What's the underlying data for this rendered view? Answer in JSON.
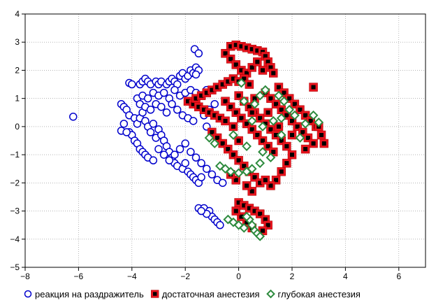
{
  "chart_data": {
    "type": "scatter",
    "title": "",
    "xlabel": "",
    "ylabel": "",
    "xlim": [
      -8,
      7
    ],
    "ylim": [
      -5,
      4
    ],
    "xticks": [
      -8,
      -6,
      -4,
      -2,
      0,
      2,
      4,
      6
    ],
    "yticks": [
      -5,
      -4,
      -3,
      -2,
      -1,
      0,
      1,
      2,
      3,
      4
    ],
    "grid": true,
    "legend_position": "bottom",
    "series": [
      {
        "name": "реакция на раздражитель",
        "marker": "circle",
        "color": "#0000cc",
        "points": [
          [
            -6.2,
            0.35
          ],
          [
            -4.4,
            0.8
          ],
          [
            -4.3,
            0.7
          ],
          [
            -4.2,
            0.6
          ],
          [
            -4.1,
            0.4
          ],
          [
            -4.3,
            0.1
          ],
          [
            -4.1,
            -0.2
          ],
          [
            -4.0,
            -0.3
          ],
          [
            -3.9,
            -0.5
          ],
          [
            -3.8,
            -0.6
          ],
          [
            -3.7,
            -0.8
          ],
          [
            -4.4,
            -0.15
          ],
          [
            -4.2,
            -0.2
          ],
          [
            -3.6,
            -0.9
          ],
          [
            -3.5,
            -1.0
          ],
          [
            -3.4,
            -1.1
          ],
          [
            -3.2,
            -1.2
          ],
          [
            -4.1,
            1.55
          ],
          [
            -4.0,
            1.5
          ],
          [
            -3.7,
            1.5
          ],
          [
            -3.6,
            1.6
          ],
          [
            -3.5,
            1.7
          ],
          [
            -3.4,
            1.6
          ],
          [
            -3.3,
            1.5
          ],
          [
            -3.1,
            1.6
          ],
          [
            -3.0,
            1.5
          ],
          [
            -2.9,
            1.6
          ],
          [
            -2.7,
            1.5
          ],
          [
            -2.6,
            1.6
          ],
          [
            -2.5,
            1.7
          ],
          [
            -2.4,
            1.6
          ],
          [
            -2.3,
            1.5
          ],
          [
            -2.2,
            1.8
          ],
          [
            -2.1,
            1.9
          ],
          [
            -2.0,
            1.7
          ],
          [
            -1.9,
            1.8
          ],
          [
            -1.8,
            2.0
          ],
          [
            -1.7,
            1.9
          ],
          [
            -1.6,
            2.1
          ],
          [
            -1.5,
            2.0
          ],
          [
            -1.6,
            1.85
          ],
          [
            -1.65,
            2.75
          ],
          [
            -1.5,
            2.6
          ],
          [
            -3.9,
            0.3
          ],
          [
            -3.8,
            0.1
          ],
          [
            -3.7,
            0.3
          ],
          [
            -3.6,
            0.5
          ],
          [
            -3.5,
            0.2
          ],
          [
            -3.4,
            0.0
          ],
          [
            -3.3,
            -0.2
          ],
          [
            -3.2,
            0.1
          ],
          [
            -3.1,
            -0.4
          ],
          [
            -3.0,
            -0.1
          ],
          [
            -3.8,
            1.0
          ],
          [
            -3.6,
            1.1
          ],
          [
            -3.4,
            1.0
          ],
          [
            -3.2,
            1.2
          ],
          [
            -3.0,
            1.1
          ],
          [
            -2.8,
            1.2
          ],
          [
            -2.6,
            1.0
          ],
          [
            -2.4,
            1.3
          ],
          [
            -2.2,
            1.1
          ],
          [
            -2.0,
            1.2
          ],
          [
            -1.8,
            1.3
          ],
          [
            -1.6,
            1.2
          ],
          [
            -1.4,
            1.1
          ],
          [
            -1.2,
            1.3
          ],
          [
            -3.7,
            0.8
          ],
          [
            -3.5,
            0.7
          ],
          [
            -3.3,
            0.6
          ],
          [
            -3.1,
            0.8
          ],
          [
            -2.9,
            0.7
          ],
          [
            -2.7,
            0.5
          ],
          [
            -2.5,
            0.8
          ],
          [
            -2.3,
            0.6
          ],
          [
            -2.1,
            0.4
          ],
          [
            -1.9,
            0.3
          ],
          [
            -1.7,
            0.2
          ],
          [
            -2.9,
            -0.3
          ],
          [
            -2.8,
            -0.5
          ],
          [
            -2.7,
            -0.7
          ],
          [
            -2.6,
            -0.9
          ],
          [
            -2.5,
            -1.1
          ],
          [
            -2.4,
            -1.3
          ],
          [
            -2.3,
            -1.4
          ],
          [
            -2.1,
            -1.5
          ],
          [
            -2.0,
            -1.3
          ],
          [
            -1.9,
            -1.6
          ],
          [
            -1.8,
            -1.7
          ],
          [
            -1.7,
            -1.8
          ],
          [
            -1.6,
            -1.9
          ],
          [
            -1.5,
            -2.0
          ],
          [
            -1.4,
            -1.8
          ],
          [
            -3.0,
            -0.8
          ],
          [
            -2.8,
            -1.0
          ],
          [
            -2.6,
            -1.2
          ],
          [
            -2.4,
            -1.0
          ],
          [
            -2.2,
            -0.8
          ],
          [
            -2.0,
            -0.6
          ],
          [
            -1.8,
            -0.9
          ],
          [
            -1.6,
            -1.1
          ],
          [
            -1.4,
            -1.3
          ],
          [
            -1.2,
            -1.5
          ],
          [
            -1.0,
            -1.7
          ],
          [
            -0.8,
            -1.9
          ],
          [
            -0.6,
            -2.0
          ],
          [
            -1.2,
            0.0
          ],
          [
            -1.0,
            -0.2
          ],
          [
            -0.8,
            -0.5
          ],
          [
            -1.3,
            0.4
          ],
          [
            -1.1,
            0.6
          ],
          [
            -0.9,
            0.8
          ],
          [
            -1.5,
            -2.9
          ],
          [
            -1.3,
            -2.9
          ],
          [
            -1.1,
            -3.0
          ],
          [
            -1.0,
            -3.2
          ],
          [
            -0.9,
            -3.3
          ],
          [
            -0.8,
            -3.4
          ],
          [
            -0.7,
            -3.5
          ],
          [
            -1.2,
            -3.1
          ],
          [
            -1.4,
            -3.0
          ]
        ]
      },
      {
        "name": "достаточная анестезия",
        "marker": "square",
        "color": "#e8141e",
        "points": [
          [
            -0.3,
            2.85
          ],
          [
            -0.1,
            2.9
          ],
          [
            0.1,
            2.85
          ],
          [
            0.3,
            2.8
          ],
          [
            0.5,
            2.75
          ],
          [
            0.7,
            2.7
          ],
          [
            0.9,
            2.65
          ],
          [
            1.0,
            2.5
          ],
          [
            1.1,
            2.3
          ],
          [
            1.2,
            2.1
          ],
          [
            1.3,
            1.9
          ],
          [
            -0.5,
            2.6
          ],
          [
            -0.3,
            2.4
          ],
          [
            -0.1,
            2.2
          ],
          [
            0.1,
            2.0
          ],
          [
            0.3,
            1.9
          ],
          [
            0.5,
            2.1
          ],
          [
            0.7,
            2.3
          ],
          [
            0.9,
            2.0
          ],
          [
            -1.9,
            0.9
          ],
          [
            -1.7,
            0.8
          ],
          [
            -1.5,
            0.7
          ],
          [
            -1.3,
            0.6
          ],
          [
            -1.1,
            0.5
          ],
          [
            -0.9,
            0.4
          ],
          [
            -0.7,
            0.3
          ],
          [
            -0.5,
            0.2
          ],
          [
            -1.6,
            1.0
          ],
          [
            -1.4,
            1.1
          ],
          [
            -1.2,
            1.2
          ],
          [
            -1.0,
            1.3
          ],
          [
            -0.8,
            1.4
          ],
          [
            -0.6,
            1.5
          ],
          [
            -0.4,
            1.6
          ],
          [
            -0.2,
            1.7
          ],
          [
            0.0,
            1.6
          ],
          [
            0.2,
            1.7
          ],
          [
            0.4,
            1.5
          ],
          [
            -1.0,
            -0.2
          ],
          [
            -0.8,
            -0.4
          ],
          [
            -0.6,
            -0.6
          ],
          [
            -0.4,
            -0.8
          ],
          [
            -0.2,
            -1.0
          ],
          [
            0.0,
            -1.2
          ],
          [
            0.2,
            -1.4
          ],
          [
            0.4,
            -1.6
          ],
          [
            0.6,
            -1.8
          ],
          [
            0.8,
            -2.0
          ],
          [
            -0.5,
            0.9
          ],
          [
            -0.3,
            0.7
          ],
          [
            -0.1,
            0.5
          ],
          [
            0.1,
            0.3
          ],
          [
            0.3,
            0.1
          ],
          [
            0.5,
            -0.1
          ],
          [
            0.7,
            -0.3
          ],
          [
            0.9,
            -0.5
          ],
          [
            1.1,
            -0.7
          ],
          [
            1.3,
            -0.9
          ],
          [
            0.0,
            1.1
          ],
          [
            0.2,
            0.9
          ],
          [
            0.4,
            0.7
          ],
          [
            0.6,
            0.5
          ],
          [
            0.8,
            0.3
          ],
          [
            1.0,
            0.1
          ],
          [
            1.2,
            -0.1
          ],
          [
            1.4,
            -0.3
          ],
          [
            1.6,
            -0.5
          ],
          [
            1.8,
            -0.7
          ],
          [
            1.0,
            1.2
          ],
          [
            1.2,
            1.0
          ],
          [
            1.4,
            0.8
          ],
          [
            1.6,
            0.6
          ],
          [
            1.8,
            0.4
          ],
          [
            2.0,
            0.2
          ],
          [
            2.2,
            0.0
          ],
          [
            2.4,
            -0.2
          ],
          [
            2.6,
            -0.4
          ],
          [
            2.8,
            -0.6
          ],
          [
            1.5,
            1.4
          ],
          [
            1.7,
            1.2
          ],
          [
            1.9,
            1.0
          ],
          [
            2.1,
            0.8
          ],
          [
            2.3,
            0.6
          ],
          [
            2.5,
            0.4
          ],
          [
            2.7,
            0.2
          ],
          [
            2.9,
            0.0
          ],
          [
            3.1,
            -0.3
          ],
          [
            3.2,
            -0.6
          ],
          [
            2.0,
            -1.0
          ],
          [
            1.8,
            -1.3
          ],
          [
            1.6,
            -1.6
          ],
          [
            1.4,
            -1.9
          ],
          [
            1.2,
            -2.1
          ],
          [
            1.0,
            -1.9
          ],
          [
            0.5,
            -2.3
          ],
          [
            0.3,
            -2.1
          ],
          [
            -0.1,
            -1.9
          ],
          [
            -0.3,
            -1.7
          ],
          [
            1.1,
            0.5
          ],
          [
            0.6,
            1.0
          ],
          [
            -0.2,
            0.0
          ],
          [
            0.0,
            -0.5
          ],
          [
            0.5,
            0.5
          ],
          [
            1.5,
            0.0
          ],
          [
            2.0,
            -0.3
          ],
          [
            2.5,
            -0.8
          ],
          [
            3.0,
            0.0
          ],
          [
            2.8,
            1.4
          ],
          [
            0.0,
            -2.7
          ],
          [
            0.2,
            -2.8
          ],
          [
            0.4,
            -2.9
          ],
          [
            0.6,
            -3.0
          ],
          [
            0.8,
            -3.1
          ],
          [
            1.0,
            -3.3
          ],
          [
            1.1,
            -3.5
          ],
          [
            0.9,
            -3.7
          ],
          [
            0.5,
            -3.6
          ],
          [
            0.3,
            -3.4
          ],
          [
            0.1,
            -3.2
          ],
          [
            -0.1,
            -3.0
          ]
        ]
      },
      {
        "name": "глубокая анестезия",
        "marker": "diamond",
        "color": "#2e8b3e",
        "points": [
          [
            0.1,
            1.55
          ],
          [
            1.0,
            1.3
          ],
          [
            0.8,
            1.1
          ],
          [
            1.5,
            1.1
          ],
          [
            1.7,
            0.9
          ],
          [
            0.6,
            0.8
          ],
          [
            0.2,
            0.9
          ],
          [
            1.9,
            0.6
          ],
          [
            2.1,
            0.4
          ],
          [
            0.5,
            0.2
          ],
          [
            1.3,
            0.2
          ],
          [
            2.5,
            0.1
          ],
          [
            2.8,
            0.4
          ],
          [
            3.0,
            0.15
          ],
          [
            1.6,
            0.3
          ],
          [
            0.9,
            0.0
          ],
          [
            -0.2,
            -0.3
          ],
          [
            -1.1,
            -0.4
          ],
          [
            -0.9,
            -0.6
          ],
          [
            0.3,
            -0.7
          ],
          [
            0.9,
            -0.9
          ],
          [
            1.2,
            -1.1
          ],
          [
            0.8,
            -1.3
          ],
          [
            -0.7,
            -1.4
          ],
          [
            -0.5,
            -1.5
          ],
          [
            -0.3,
            -1.6
          ],
          [
            0.0,
            -1.65
          ],
          [
            0.3,
            -1.6
          ],
          [
            0.5,
            -1.5
          ],
          [
            1.6,
            -0.3
          ],
          [
            2.3,
            -0.4
          ],
          [
            -0.4,
            -3.3
          ],
          [
            -0.2,
            -3.4
          ],
          [
            0.0,
            -3.5
          ],
          [
            0.2,
            -3.6
          ],
          [
            0.4,
            -3.3
          ],
          [
            0.5,
            -3.5
          ],
          [
            0.6,
            -3.7
          ],
          [
            0.7,
            -3.8
          ],
          [
            0.8,
            -3.9
          ],
          [
            0.3,
            -3.2
          ]
        ]
      }
    ]
  }
}
